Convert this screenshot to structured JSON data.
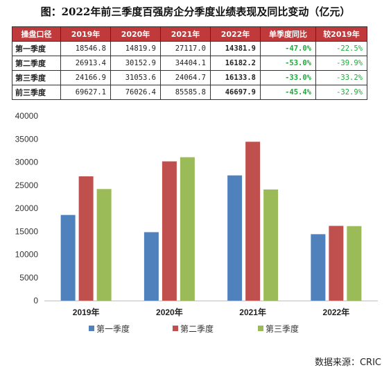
{
  "title": "图：2022年前三季度百强房企分季度业绩表现及同比变动（亿元）",
  "table": {
    "headers": [
      "操盘口径",
      "2019年",
      "2020年",
      "2021年",
      "2022年",
      "单季度同比",
      "较2019年"
    ],
    "rows": [
      {
        "label": "第一季度",
        "v2019": "18546.8",
        "v2020": "14819.9",
        "v2021": "27117.0",
        "v2022": "14381.9",
        "yoy": "-47.0%",
        "vs2019": "-22.5%"
      },
      {
        "label": "第二季度",
        "v2019": "26913.4",
        "v2020": "30152.9",
        "v2021": "34404.1",
        "v2022": "16182.2",
        "yoy": "-53.0%",
        "vs2019": "-39.9%"
      },
      {
        "label": "第三季度",
        "v2019": "24166.9",
        "v2020": "31053.6",
        "v2021": "24064.7",
        "v2022": "16133.8",
        "yoy": "-33.0%",
        "vs2019": "-33.2%"
      },
      {
        "label": "前三季度",
        "v2019": "69627.1",
        "v2020": "76026.4",
        "v2021": "85585.8",
        "v2022": "46697.9",
        "yoy": "-45.4%",
        "vs2019": "-32.9%"
      }
    ]
  },
  "chart_data": {
    "type": "bar",
    "categories": [
      "2019年",
      "2020年",
      "2021年",
      "2022年"
    ],
    "series": [
      {
        "name": "第一季度",
        "color": "#4f81bd",
        "values": [
          18546.8,
          14819.9,
          27117.0,
          14381.9
        ]
      },
      {
        "name": "第二季度",
        "color": "#c0504d",
        "values": [
          26913.4,
          30152.9,
          34404.1,
          16182.2
        ]
      },
      {
        "name": "第三季度",
        "color": "#9bbb59",
        "values": [
          24166.9,
          31053.6,
          24064.7,
          16133.8
        ]
      }
    ],
    "ylim": [
      0,
      40000
    ],
    "yticks": [
      0,
      5000,
      10000,
      15000,
      20000,
      25000,
      30000,
      35000,
      40000
    ],
    "legend": "bottom",
    "grid": false
  },
  "source": "数据来源：CRIC"
}
